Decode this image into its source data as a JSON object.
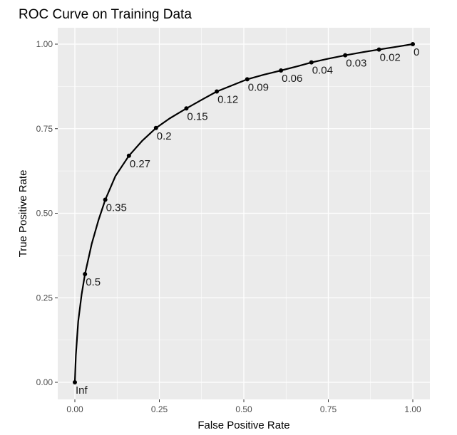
{
  "chart_data": {
    "type": "line",
    "title": "ROC Curve on Training Data",
    "xlabel": "False Positive Rate",
    "ylabel": "True Positive Rate",
    "xlim": [
      0,
      1
    ],
    "ylim": [
      0,
      1
    ],
    "xticks": [
      "0.00",
      "0.25",
      "0.50",
      "0.75",
      "1.00"
    ],
    "yticks": [
      "0.00",
      "0.25",
      "0.50",
      "0.75",
      "1.00"
    ],
    "grid": true,
    "background": "#ebebeb",
    "gridline_color": "#ffffff",
    "line_color": "#000000",
    "curve": {
      "x": [
        0,
        0.003,
        0.01,
        0.02,
        0.03,
        0.05,
        0.07,
        0.09,
        0.12,
        0.16,
        0.2,
        0.24,
        0.28,
        0.33,
        0.38,
        0.42,
        0.47,
        0.51,
        0.56,
        0.61,
        0.66,
        0.7,
        0.75,
        0.8,
        0.85,
        0.9,
        0.95,
        1.0
      ],
      "y": [
        0,
        0.08,
        0.18,
        0.26,
        0.32,
        0.41,
        0.48,
        0.54,
        0.61,
        0.67,
        0.715,
        0.752,
        0.78,
        0.81,
        0.838,
        0.86,
        0.88,
        0.896,
        0.91,
        0.922,
        0.935,
        0.946,
        0.957,
        0.967,
        0.976,
        0.984,
        0.992,
        1.0
      ]
    },
    "points": [
      {
        "label": "Inf",
        "x": 0.0,
        "y": 0.0
      },
      {
        "label": "0.5",
        "x": 0.03,
        "y": 0.32
      },
      {
        "label": "0.35",
        "x": 0.09,
        "y": 0.54
      },
      {
        "label": "0.27",
        "x": 0.16,
        "y": 0.67
      },
      {
        "label": "0.2",
        "x": 0.24,
        "y": 0.752
      },
      {
        "label": "0.15",
        "x": 0.33,
        "y": 0.81
      },
      {
        "label": "0.12",
        "x": 0.42,
        "y": 0.86
      },
      {
        "label": "0.09",
        "x": 0.51,
        "y": 0.896
      },
      {
        "label": "0.06",
        "x": 0.61,
        "y": 0.922
      },
      {
        "label": "0.04",
        "x": 0.7,
        "y": 0.946
      },
      {
        "label": "0.03",
        "x": 0.8,
        "y": 0.967
      },
      {
        "label": "0.02",
        "x": 0.9,
        "y": 0.984
      },
      {
        "label": "0",
        "x": 1.0,
        "y": 1.0
      }
    ]
  }
}
